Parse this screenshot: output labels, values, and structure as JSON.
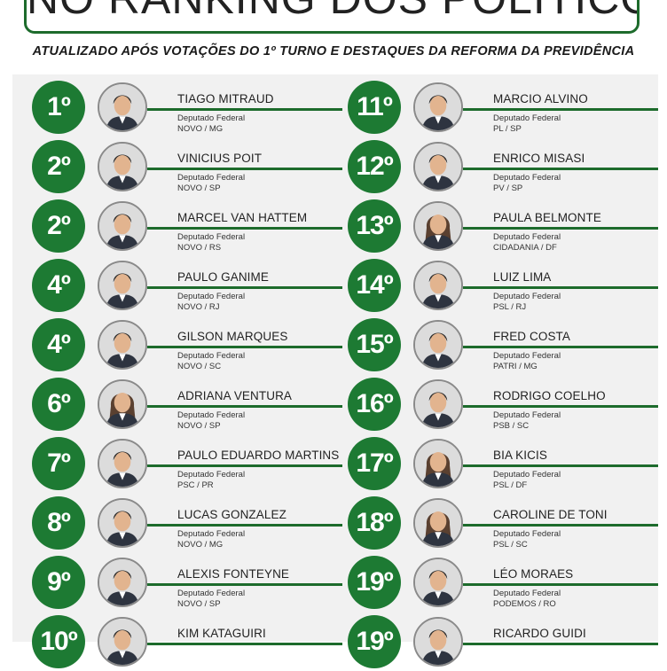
{
  "header": {
    "title": "NO RANKING DOS POLÍTICOS",
    "subtitle": "ATUALIZADO APÓS VOTAÇÕES DO 1º TURNO E DESTAQUES DA REFORMA DA PREVIDÊNCIA"
  },
  "colors": {
    "accent": "#1d7a33",
    "line": "#1d6b2c",
    "background": "#f1f1f1"
  },
  "rows": [
    {
      "left": {
        "rank": "1º",
        "name": "TIAGO MITRAUD",
        "role": "Deputado Federal",
        "party": "NOVO / MG"
      },
      "right": {
        "rank": "11º",
        "name": "MARCIO ALVINO",
        "role": "Deputado Federal",
        "party": "PL / SP"
      }
    },
    {
      "left": {
        "rank": "2º",
        "name": "VINICIUS POIT",
        "role": "Deputado Federal",
        "party": "NOVO / SP"
      },
      "right": {
        "rank": "12º",
        "name": "ENRICO MISASI",
        "role": "Deputado Federal",
        "party": "PV / SP"
      }
    },
    {
      "left": {
        "rank": "2º",
        "name": "MARCEL VAN HATTEM",
        "role": "Deputado Federal",
        "party": "NOVO / RS"
      },
      "right": {
        "rank": "13º",
        "name": "PAULA BELMONTE",
        "role": "Deputado Federal",
        "party": "CIDADANIA / DF"
      }
    },
    {
      "left": {
        "rank": "4º",
        "name": "PAULO GANIME",
        "role": "Deputado Federal",
        "party": "NOVO / RJ"
      },
      "right": {
        "rank": "14º",
        "name": "LUIZ LIMA",
        "role": "Deputado Federal",
        "party": "PSL / RJ"
      }
    },
    {
      "left": {
        "rank": "4º",
        "name": "GILSON MARQUES",
        "role": "Deputado Federal",
        "party": "NOVO / SC"
      },
      "right": {
        "rank": "15º",
        "name": "FRED COSTA",
        "role": "Deputado Federal",
        "party": "PATRI / MG"
      }
    },
    {
      "left": {
        "rank": "6º",
        "name": "ADRIANA VENTURA",
        "role": "Deputado Federal",
        "party": "NOVO / SP"
      },
      "right": {
        "rank": "16º",
        "name": "RODRIGO COELHO",
        "role": "Deputado Federal",
        "party": "PSB / SC"
      }
    },
    {
      "left": {
        "rank": "7º",
        "name": "PAULO EDUARDO MARTINS",
        "role": "Deputado Federal",
        "party": "PSC / PR"
      },
      "right": {
        "rank": "17º",
        "name": "BIA KICIS",
        "role": "Deputado Federal",
        "party": "PSL / DF"
      }
    },
    {
      "left": {
        "rank": "8º",
        "name": "LUCAS GONZALEZ",
        "role": "Deputado Federal",
        "party": "NOVO / MG"
      },
      "right": {
        "rank": "18º",
        "name": "CAROLINE DE TONI",
        "role": "Deputado Federal",
        "party": "PSL / SC"
      }
    },
    {
      "left": {
        "rank": "9º",
        "name": "ALEXIS FONTEYNE",
        "role": "Deputado Federal",
        "party": "NOVO / SP"
      },
      "right": {
        "rank": "19º",
        "name": "LÉO MORAES",
        "role": "Deputado Federal",
        "party": "PODEMOS / RO"
      }
    },
    {
      "left": {
        "rank": "10º",
        "name": "KIM KATAGUIRI",
        "role": "",
        "party": ""
      },
      "right": {
        "rank": "19º",
        "name": "RICARDO GUIDI",
        "role": "",
        "party": ""
      }
    }
  ]
}
